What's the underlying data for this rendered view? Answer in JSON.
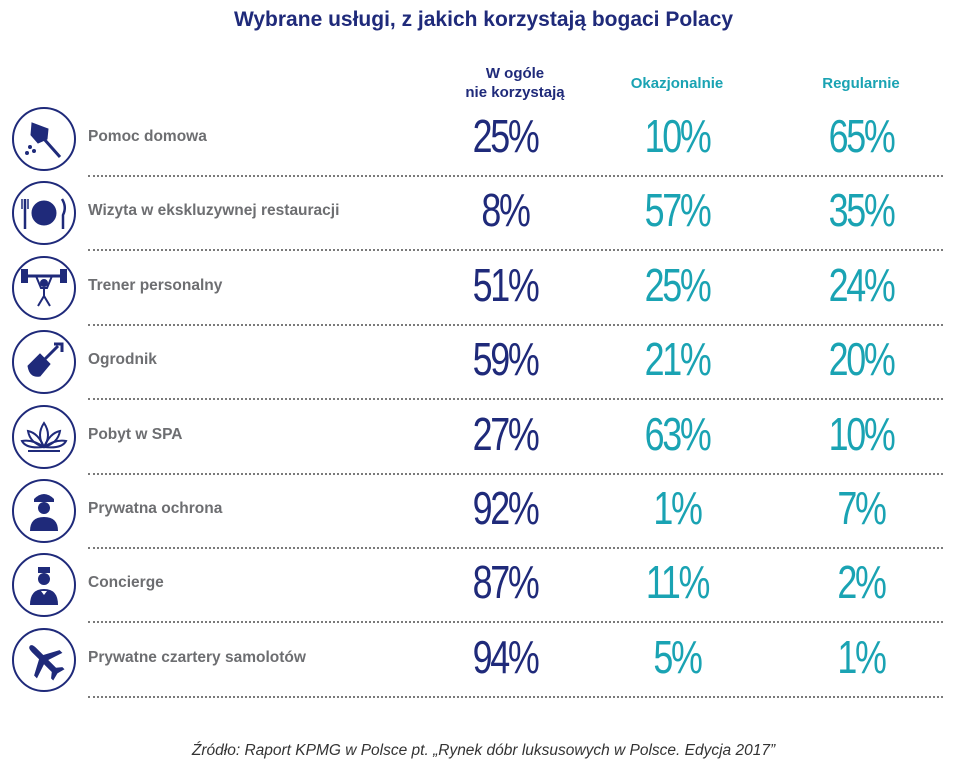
{
  "title": "Wybrane usługi, z jakich korzystają bogaci Polacy",
  "columns": [
    {
      "line1": "W ogóle",
      "line2": "nie korzystają",
      "color": "#1f2a7a"
    },
    {
      "line1": "Okazjonalnie",
      "line2": "",
      "color": "#1aa3b3"
    },
    {
      "line1": "Regularnie",
      "line2": "",
      "color": "#1aa3b3"
    }
  ],
  "chart_data": {
    "type": "table",
    "title": "Wybrane usługi, z jakich korzystają bogaci Polacy",
    "columns": [
      "W ogóle nie korzystają",
      "Okazjonalnie",
      "Regularnie"
    ],
    "rows": [
      {
        "label": "Pomoc domowa",
        "icon": "feather-duster-icon",
        "values": [
          "25%",
          "10%",
          "65%"
        ]
      },
      {
        "label": "Wizyta w ekskluzywnej restauracji",
        "icon": "plate-cutlery-icon",
        "values": [
          "8%",
          "57%",
          "35%"
        ]
      },
      {
        "label": "Trener personalny",
        "icon": "weightlifter-icon",
        "values": [
          "51%",
          "25%",
          "24%"
        ]
      },
      {
        "label": "Ogrodnik",
        "icon": "shovel-icon",
        "values": [
          "59%",
          "21%",
          "20%"
        ]
      },
      {
        "label": "Pobyt w SPA",
        "icon": "lotus-icon",
        "values": [
          "27%",
          "63%",
          "10%"
        ]
      },
      {
        "label": "Prywatna ochrona",
        "icon": "security-guard-icon",
        "values": [
          "92%",
          "1%",
          "7%"
        ]
      },
      {
        "label": "Concierge",
        "icon": "concierge-icon",
        "values": [
          "87%",
          "11%",
          "2%"
        ]
      },
      {
        "label": "Prywatne czartery samolotów",
        "icon": "airplane-icon",
        "values": [
          "94%",
          "5%",
          "1%"
        ]
      }
    ]
  },
  "source": "Źródło: Raport KPMG w Polsce pt. „Rynek dóbr luksusowych w Polsce. Edycja 2017”",
  "colors": {
    "navy": "#1f2a7a",
    "teal": "#1aa3b3",
    "label_gray": "#6d6e71",
    "dots": "#7a7a7a"
  }
}
